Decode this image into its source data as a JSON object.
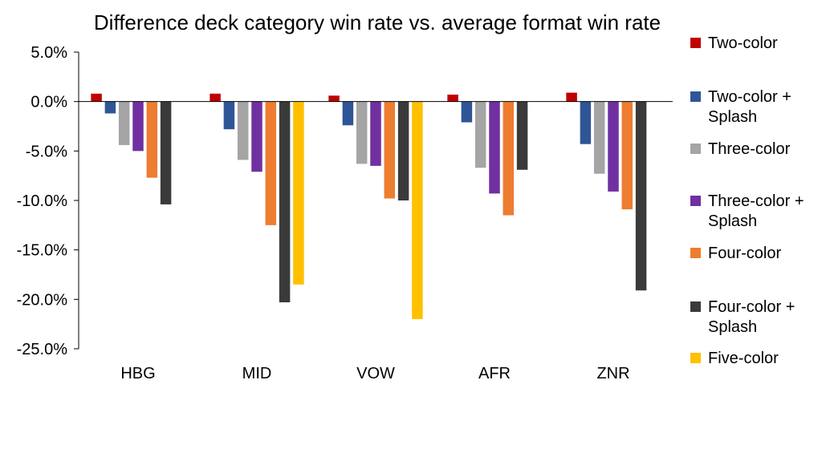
{
  "chart_data": {
    "type": "bar",
    "title": "Difference deck category win rate vs. average format win rate",
    "xlabel": "",
    "ylabel": "",
    "ylim": [
      -25,
      5
    ],
    "yticks": [
      "5.0%",
      "0.0%",
      "-5.0%",
      "-10.0%",
      "-15.0%",
      "-20.0%",
      "-25.0%"
    ],
    "ytick_values": [
      5,
      0,
      -5,
      -10,
      -15,
      -20,
      -25
    ],
    "categories": [
      "HBG",
      "MID",
      "VOW",
      "AFR",
      "ZNR"
    ],
    "legend_position": "right",
    "series": [
      {
        "name": "Two-color",
        "legend_lines": [
          "Two-color"
        ],
        "color": "#C00000",
        "values": [
          0.8,
          0.8,
          0.6,
          0.7,
          0.9
        ]
      },
      {
        "name": "Two-color + Splash",
        "legend_lines": [
          "Two-color +",
          "Splash"
        ],
        "color": "#2F5597",
        "values": [
          -1.2,
          -2.8,
          -2.4,
          -2.1,
          -4.3
        ]
      },
      {
        "name": "Three-color",
        "legend_lines": [
          "Three-color"
        ],
        "color": "#A5A5A5",
        "values": [
          -4.4,
          -5.9,
          -6.3,
          -6.7,
          -7.3
        ]
      },
      {
        "name": "Three-color + Splash",
        "legend_lines": [
          "Three-color +",
          "Splash"
        ],
        "color": "#7030A0",
        "values": [
          -5.0,
          -7.1,
          -6.5,
          -9.3,
          -9.1
        ]
      },
      {
        "name": "Four-color",
        "legend_lines": [
          "Four-color"
        ],
        "color": "#ED7D31",
        "values": [
          -7.7,
          -12.5,
          -9.8,
          -11.5,
          -10.9
        ]
      },
      {
        "name": "Four-color + Splash",
        "legend_lines": [
          "Four-color +",
          "Splash"
        ],
        "color": "#3A3A3A",
        "values": [
          -10.4,
          -20.3,
          -10.0,
          -6.9,
          -19.1
        ]
      },
      {
        "name": "Five-color",
        "legend_lines": [
          "Five-color"
        ],
        "color": "#FFC000",
        "values": [
          null,
          -18.5,
          -22.0,
          null,
          null
        ]
      }
    ]
  }
}
